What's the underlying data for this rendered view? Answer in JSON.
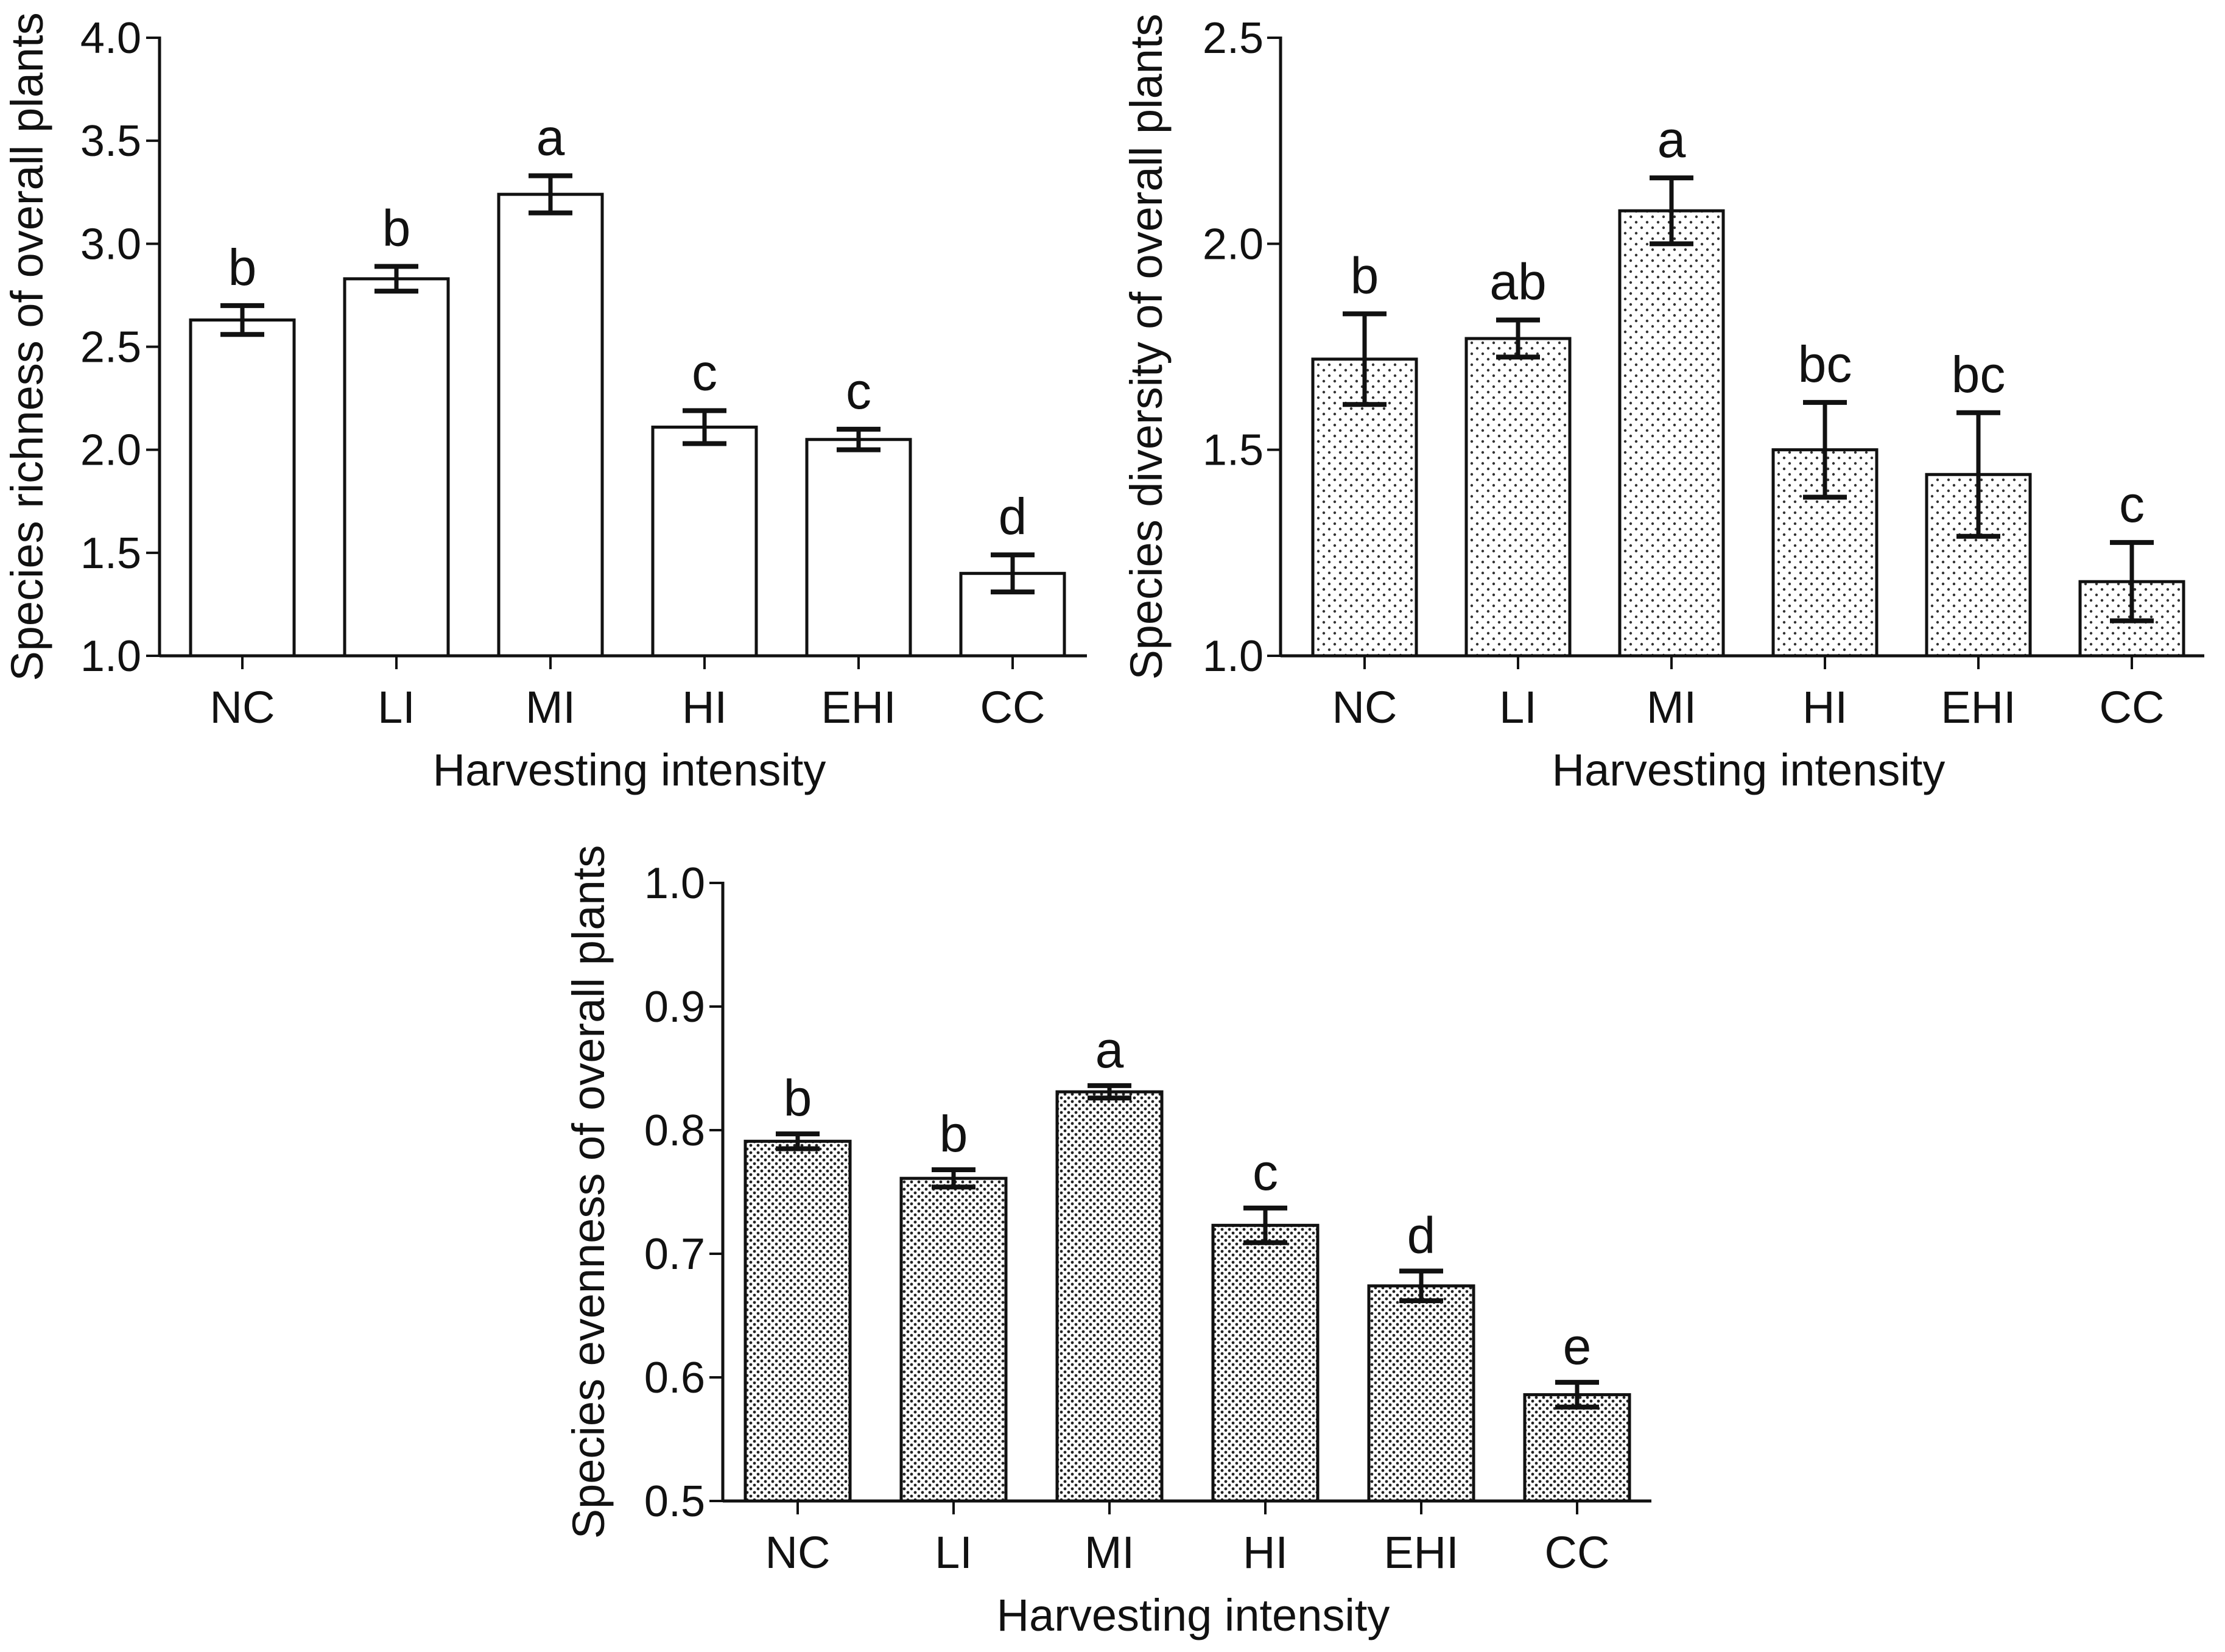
{
  "chart_data": [
    {
      "id": "richness",
      "type": "bar",
      "pattern": "none",
      "categories": [
        "NC",
        "LI",
        "MI",
        "HI",
        "EHI",
        "CC"
      ],
      "values": [
        2.63,
        2.83,
        3.24,
        2.11,
        2.05,
        1.4
      ],
      "errors": [
        0.07,
        0.06,
        0.09,
        0.08,
        0.05,
        0.09
      ],
      "significance": [
        "b",
        "b",
        "a",
        "c",
        "c",
        "d"
      ],
      "title": "",
      "xlabel": "Harvesting intensity",
      "ylabel": "Species richness of overall plants",
      "ylim": [
        1.0,
        4.0
      ],
      "yticks": [
        1.0,
        1.5,
        2.0,
        2.5,
        3.0,
        3.5,
        4.0
      ],
      "ytick_labels": [
        "1.0",
        "1.5",
        "2.0",
        "2.5",
        "3.0",
        "3.5",
        "4.0"
      ],
      "grid": false,
      "bar_fill": "#ffffff",
      "bar_stroke": "#111111"
    },
    {
      "id": "diversity",
      "type": "bar",
      "pattern": "sparse-dots",
      "categories": [
        "NC",
        "LI",
        "MI",
        "HI",
        "EHI",
        "CC"
      ],
      "values": [
        1.72,
        1.77,
        2.08,
        1.5,
        1.44,
        1.18
      ],
      "errors": [
        0.11,
        0.045,
        0.08,
        0.115,
        0.15,
        0.095
      ],
      "significance": [
        "b",
        "ab",
        "a",
        "bc",
        "bc",
        "c"
      ],
      "title": "",
      "xlabel": "Harvesting intensity",
      "ylabel": "Species diversity of overall plants",
      "ylim": [
        1.0,
        2.5
      ],
      "yticks": [
        1.0,
        1.5,
        2.0,
        2.5
      ],
      "ytick_labels": [
        "1.0",
        "1.5",
        "2.0",
        "2.5"
      ],
      "grid": false,
      "bar_fill": "#ffffff",
      "bar_stroke": "#111111"
    },
    {
      "id": "evenness",
      "type": "bar",
      "pattern": "dense-dots",
      "categories": [
        "NC",
        "LI",
        "MI",
        "HI",
        "EHI",
        "CC"
      ],
      "values": [
        0.791,
        0.761,
        0.831,
        0.723,
        0.674,
        0.586
      ],
      "errors": [
        0.006,
        0.007,
        0.005,
        0.014,
        0.012,
        0.01
      ],
      "significance": [
        "b",
        "b",
        "a",
        "c",
        "d",
        "e"
      ],
      "title": "",
      "xlabel": "Harvesting intensity",
      "ylabel": "Species evenness of overall plants",
      "ylim": [
        0.5,
        1.0
      ],
      "yticks": [
        0.5,
        0.6,
        0.7,
        0.8,
        0.9,
        1.0
      ],
      "ytick_labels": [
        "0.5",
        "0.6",
        "0.7",
        "0.8",
        "0.9",
        "1.0"
      ],
      "grid": false,
      "bar_fill": "#ffffff",
      "bar_stroke": "#111111"
    }
  ]
}
